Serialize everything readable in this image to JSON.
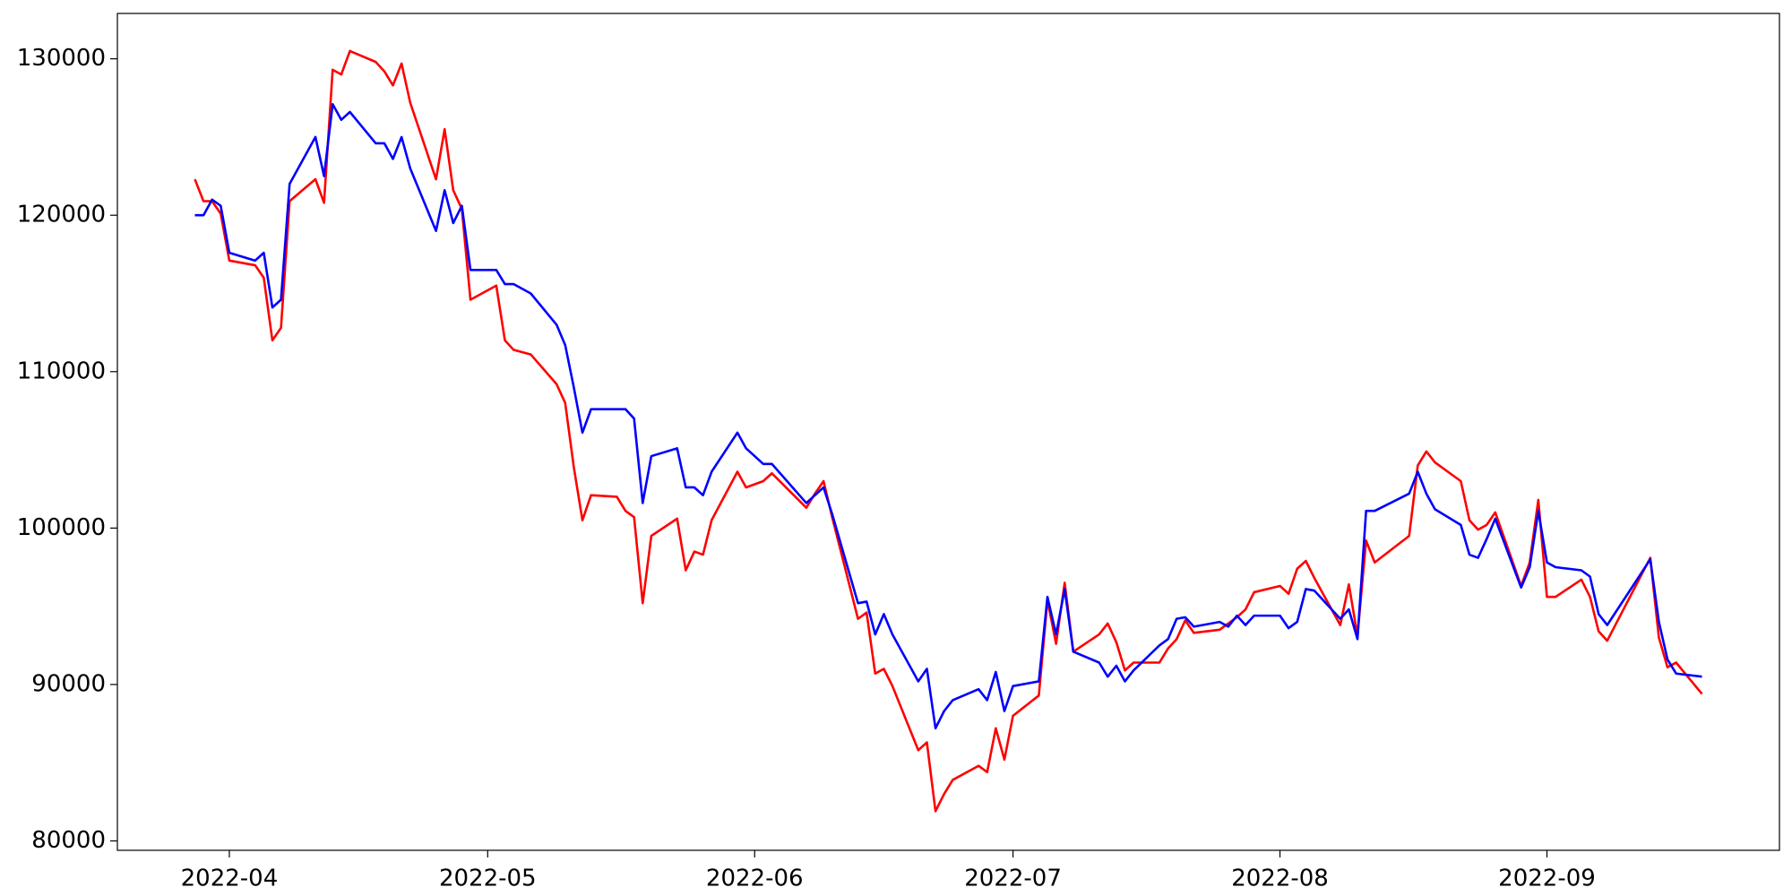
{
  "chart_data": {
    "type": "line",
    "x": [
      "2022-03-28",
      "2022-03-29",
      "2022-03-30",
      "2022-03-31",
      "2022-04-01",
      "2022-04-04",
      "2022-04-05",
      "2022-04-06",
      "2022-04-07",
      "2022-04-08",
      "2022-04-11",
      "2022-04-12",
      "2022-04-13",
      "2022-04-14",
      "2022-04-15",
      "2022-04-18",
      "2022-04-19",
      "2022-04-20",
      "2022-04-21",
      "2022-04-22",
      "2022-04-25",
      "2022-04-26",
      "2022-04-27",
      "2022-04-28",
      "2022-04-29",
      "2022-05-02",
      "2022-05-03",
      "2022-05-04",
      "2022-05-06",
      "2022-05-09",
      "2022-05-10",
      "2022-05-11",
      "2022-05-12",
      "2022-05-13",
      "2022-05-16",
      "2022-05-17",
      "2022-05-18",
      "2022-05-19",
      "2022-05-20",
      "2022-05-23",
      "2022-05-24",
      "2022-05-25",
      "2022-05-26",
      "2022-05-27",
      "2022-05-30",
      "2022-05-31",
      "2022-06-02",
      "2022-06-03",
      "2022-06-07",
      "2022-06-08",
      "2022-06-09",
      "2022-06-10",
      "2022-06-13",
      "2022-06-14",
      "2022-06-15",
      "2022-06-16",
      "2022-06-17",
      "2022-06-20",
      "2022-06-21",
      "2022-06-22",
      "2022-06-23",
      "2022-06-24",
      "2022-06-27",
      "2022-06-28",
      "2022-06-29",
      "2022-06-30",
      "2022-07-01",
      "2022-07-04",
      "2022-07-05",
      "2022-07-06",
      "2022-07-07",
      "2022-07-08",
      "2022-07-11",
      "2022-07-12",
      "2022-07-13",
      "2022-07-14",
      "2022-07-15",
      "2022-07-18",
      "2022-07-19",
      "2022-07-20",
      "2022-07-21",
      "2022-07-22",
      "2022-07-25",
      "2022-07-26",
      "2022-07-27",
      "2022-07-28",
      "2022-07-29",
      "2022-08-01",
      "2022-08-02",
      "2022-08-03",
      "2022-08-04",
      "2022-08-05",
      "2022-08-08",
      "2022-08-09",
      "2022-08-10",
      "2022-08-11",
      "2022-08-12",
      "2022-08-16",
      "2022-08-17",
      "2022-08-18",
      "2022-08-19",
      "2022-08-22",
      "2022-08-23",
      "2022-08-24",
      "2022-08-25",
      "2022-08-26",
      "2022-08-29",
      "2022-08-30",
      "2022-08-31",
      "2022-09-01",
      "2022-09-02",
      "2022-09-05",
      "2022-09-06",
      "2022-09-07",
      "2022-09-08",
      "2022-09-13",
      "2022-09-14",
      "2022-09-15",
      "2022-09-16",
      "2022-09-19"
    ],
    "series": [
      {
        "color": "#ff0000",
        "values": [
          122300,
          120900,
          120900,
          120100,
          117100,
          116800,
          116000,
          112000,
          112800,
          120900,
          122300,
          120800,
          129300,
          129000,
          130500,
          129800,
          129200,
          128300,
          129700,
          127200,
          122300,
          125500,
          121600,
          120400,
          114600,
          115500,
          112000,
          111400,
          111100,
          109200,
          108000,
          103900,
          100500,
          102100,
          102000,
          101100,
          100700,
          95200,
          99500,
          100600,
          97300,
          98500,
          98300,
          100500,
          103600,
          102600,
          103000,
          103500,
          101300,
          102200,
          103000,
          100700,
          94200,
          94600,
          90700,
          91000,
          89900,
          85800,
          86300,
          81900,
          83000,
          83900,
          84800,
          84400,
          87200,
          85200,
          88000,
          89300,
          95400,
          92600,
          96500,
          92100,
          93200,
          93900,
          92700,
          90900,
          91400,
          91400,
          92300,
          92900,
          94100,
          93300,
          93500,
          93900,
          94300,
          94800,
          95900,
          96300,
          95800,
          97400,
          97900,
          96800,
          93800,
          96400,
          93100,
          99200,
          97800,
          99500,
          104000,
          104900,
          104200,
          103000,
          100500,
          99900,
          100200,
          101000,
          96300,
          97800,
          101800,
          95600,
          95600,
          96700,
          95600,
          93400,
          92800,
          98100,
          93000,
          91100,
          91400,
          89400
        ]
      },
      {
        "color": "#0000ff",
        "values": [
          120000,
          120000,
          121000,
          120600,
          117600,
          117100,
          117600,
          114100,
          114600,
          122000,
          125000,
          122500,
          127100,
          126100,
          126600,
          124600,
          124600,
          123600,
          125000,
          123000,
          119000,
          121600,
          119500,
          120600,
          116500,
          116500,
          115600,
          115600,
          115000,
          113000,
          111700,
          109000,
          106100,
          107600,
          107600,
          107600,
          107000,
          101600,
          104600,
          105100,
          102600,
          102600,
          102100,
          103600,
          106100,
          105100,
          104100,
          104100,
          101600,
          102100,
          102600,
          100900,
          95200,
          95300,
          93200,
          94500,
          93200,
          90200,
          91000,
          87200,
          88300,
          89000,
          89700,
          89000,
          90800,
          88300,
          89900,
          90200,
          95600,
          93200,
          96100,
          92100,
          91400,
          90500,
          91200,
          90200,
          90900,
          92500,
          92900,
          94200,
          94300,
          93700,
          94000,
          93700,
          94400,
          93800,
          94400,
          94400,
          93600,
          94000,
          96100,
          96000,
          94200,
          94800,
          92900,
          101100,
          101100,
          102200,
          103600,
          102200,
          101200,
          100200,
          98300,
          98100,
          99300,
          100600,
          96200,
          97500,
          101100,
          97800,
          97500,
          97300,
          96900,
          94500,
          93800,
          98000,
          94000,
          91600,
          90700,
          90500
        ]
      }
    ],
    "xlim": [
      "2022-03-19",
      "2022-09-28"
    ],
    "xticks": [
      {
        "value": "2022-04-01",
        "label": "2022-04"
      },
      {
        "value": "2022-05-01",
        "label": "2022-05"
      },
      {
        "value": "2022-06-01",
        "label": "2022-06"
      },
      {
        "value": "2022-07-01",
        "label": "2022-07"
      },
      {
        "value": "2022-08-01",
        "label": "2022-08"
      },
      {
        "value": "2022-09-01",
        "label": "2022-09"
      }
    ],
    "ylim": [
      79400,
      132900
    ],
    "yticks": [
      80000,
      90000,
      100000,
      110000,
      120000,
      130000
    ]
  }
}
